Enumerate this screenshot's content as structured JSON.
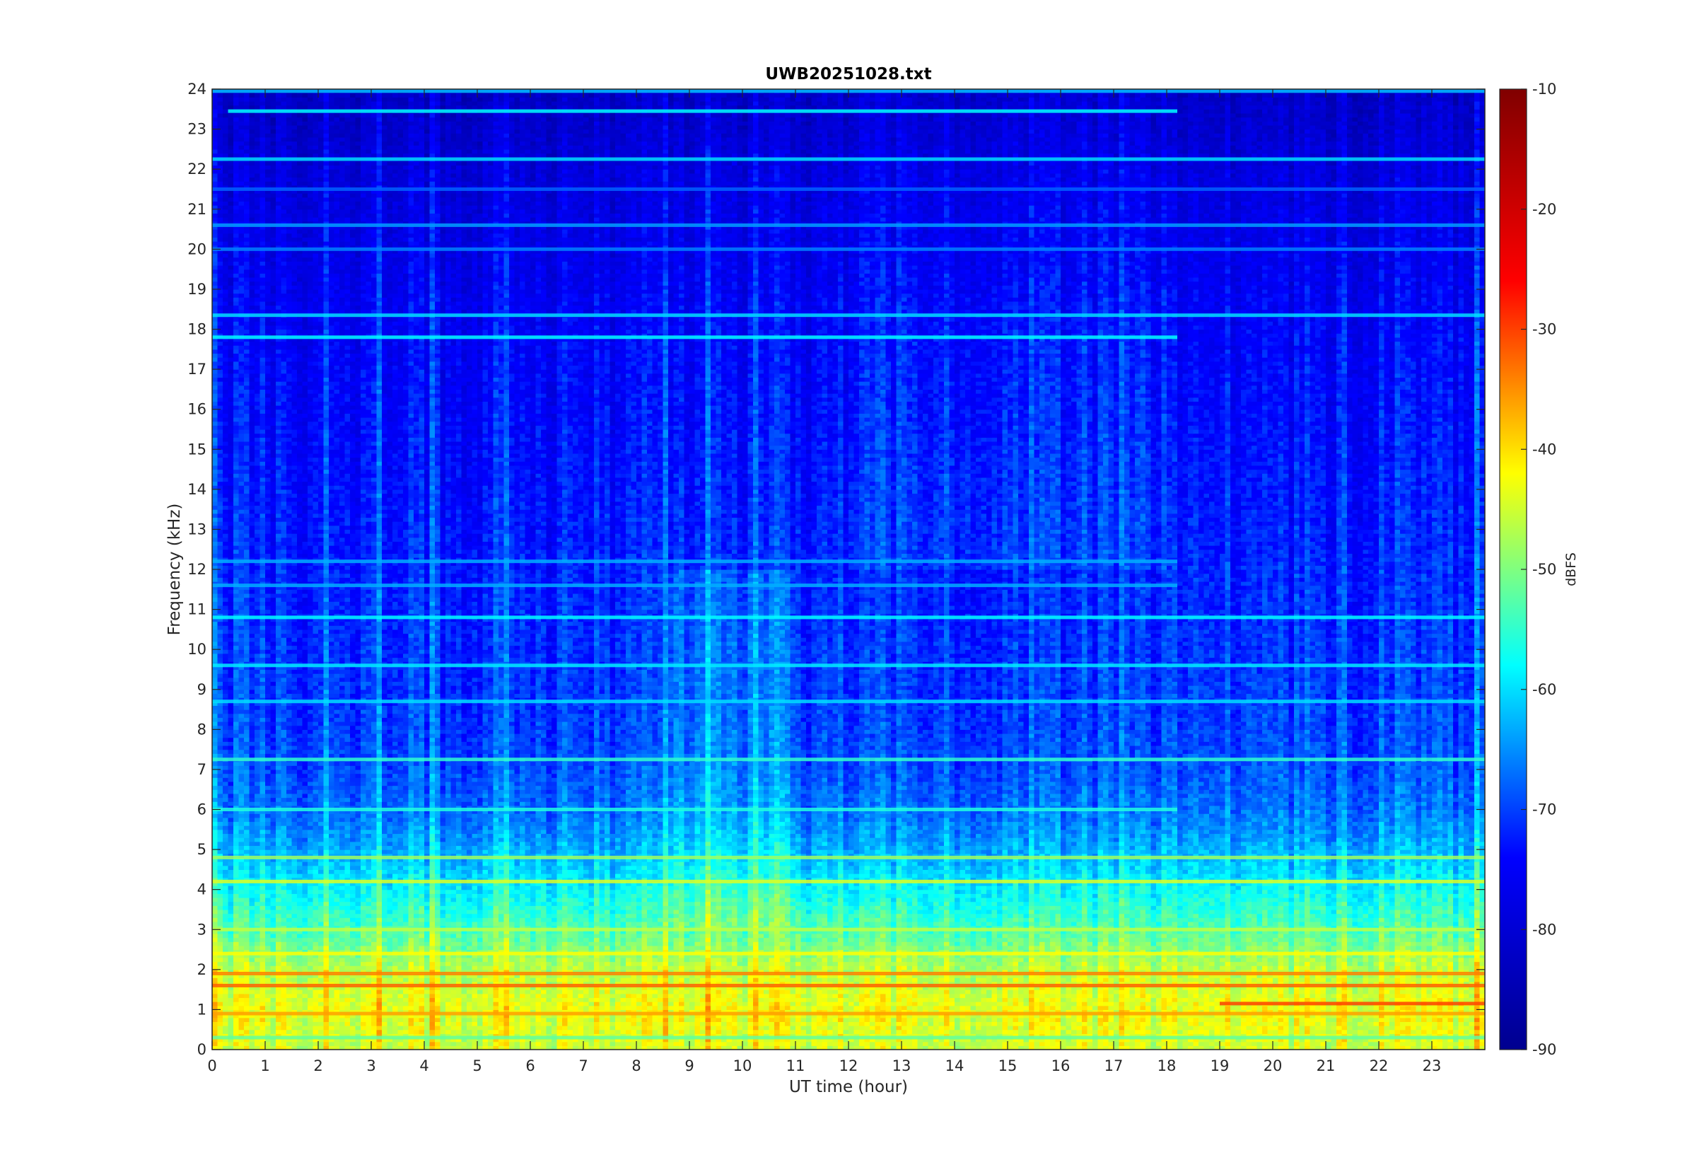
{
  "chart_data": {
    "type": "heatmap",
    "title": "UWB20251028.txt",
    "xlabel": "UT time (hour)",
    "ylabel": "Frequency (kHz)",
    "xlim": [
      0,
      24
    ],
    "ylim": [
      0,
      24
    ],
    "x_ticks": [
      "0",
      "1",
      "2",
      "3",
      "4",
      "5",
      "6",
      "7",
      "8",
      "9",
      "10",
      "11",
      "12",
      "13",
      "14",
      "15",
      "16",
      "17",
      "18",
      "19",
      "20",
      "21",
      "22",
      "23"
    ],
    "y_ticks": [
      "0",
      "1",
      "2",
      "3",
      "4",
      "5",
      "6",
      "7",
      "8",
      "9",
      "10",
      "11",
      "12",
      "13",
      "14",
      "15",
      "16",
      "17",
      "18",
      "19",
      "20",
      "21",
      "22",
      "23",
      "24"
    ],
    "colorbar": {
      "label": "dBFS",
      "colormap": "jet",
      "range": [
        -90,
        -10
      ],
      "ticks": [
        "-10",
        "-20",
        "-30",
        "-40",
        "-50",
        "-60",
        "-70",
        "-80",
        "-90"
      ]
    },
    "colormap_stops": [
      "#00008f",
      "#0000ff",
      "#00ffff",
      "#ffff00",
      "#ff0000",
      "#800000"
    ],
    "noise_floor_by_frequency": [
      {
        "freq_khz": 0,
        "dbfs": -45
      },
      {
        "freq_khz": 1,
        "dbfs": -43
      },
      {
        "freq_khz": 2,
        "dbfs": -46
      },
      {
        "freq_khz": 3,
        "dbfs": -53
      },
      {
        "freq_khz": 4,
        "dbfs": -58
      },
      {
        "freq_khz": 5,
        "dbfs": -63
      },
      {
        "freq_khz": 6,
        "dbfs": -67
      },
      {
        "freq_khz": 7,
        "dbfs": -69
      },
      {
        "freq_khz": 8,
        "dbfs": -70
      },
      {
        "freq_khz": 10,
        "dbfs": -71
      },
      {
        "freq_khz": 12,
        "dbfs": -72
      },
      {
        "freq_khz": 14,
        "dbfs": -73
      },
      {
        "freq_khz": 16,
        "dbfs": -74
      },
      {
        "freq_khz": 18,
        "dbfs": -75
      },
      {
        "freq_khz": 20,
        "dbfs": -77
      },
      {
        "freq_khz": 21,
        "dbfs": -78
      },
      {
        "freq_khz": 22,
        "dbfs": -79
      },
      {
        "freq_khz": 23,
        "dbfs": -81
      },
      {
        "freq_khz": 24,
        "dbfs": -82
      }
    ],
    "bright_quiet_period_hours": [
      12,
      18
    ],
    "tone_lines": [
      {
        "freq_khz": 0.3,
        "dbfs": -52,
        "t_start": 0,
        "t_end": 24
      },
      {
        "freq_khz": 0.9,
        "dbfs": -36,
        "t_start": 0,
        "t_end": 24
      },
      {
        "freq_khz": 1.15,
        "dbfs": -30,
        "t_start": 19,
        "t_end": 24
      },
      {
        "freq_khz": 1.6,
        "dbfs": -32,
        "t_start": 0,
        "t_end": 24
      },
      {
        "freq_khz": 1.9,
        "dbfs": -34,
        "t_start": 0,
        "t_end": 24
      },
      {
        "freq_khz": 2.4,
        "dbfs": -42,
        "t_start": 0,
        "t_end": 24
      },
      {
        "freq_khz": 3.0,
        "dbfs": -46,
        "t_start": 0,
        "t_end": 24
      },
      {
        "freq_khz": 4.2,
        "dbfs": -44,
        "t_start": 0,
        "t_end": 24
      },
      {
        "freq_khz": 4.8,
        "dbfs": -48,
        "t_start": 0,
        "t_end": 24
      },
      {
        "freq_khz": 6.0,
        "dbfs": -56,
        "t_start": 0,
        "t_end": 18.2
      },
      {
        "freq_khz": 7.25,
        "dbfs": -55,
        "t_start": 0,
        "t_end": 24
      },
      {
        "freq_khz": 8.7,
        "dbfs": -60,
        "t_start": 0,
        "t_end": 24
      },
      {
        "freq_khz": 9.6,
        "dbfs": -59,
        "t_start": 0,
        "t_end": 24
      },
      {
        "freq_khz": 10.8,
        "dbfs": -58,
        "t_start": 0,
        "t_end": 24
      },
      {
        "freq_khz": 11.6,
        "dbfs": -63,
        "t_start": 0,
        "t_end": 18.2
      },
      {
        "freq_khz": 12.2,
        "dbfs": -63,
        "t_start": 0,
        "t_end": 18.2
      },
      {
        "freq_khz": 17.8,
        "dbfs": -58,
        "t_start": 0,
        "t_end": 18.2
      },
      {
        "freq_khz": 18.35,
        "dbfs": -60,
        "t_start": 0,
        "t_end": 24
      },
      {
        "freq_khz": 20.0,
        "dbfs": -66,
        "t_start": 0,
        "t_end": 24
      },
      {
        "freq_khz": 20.6,
        "dbfs": -64,
        "t_start": 0,
        "t_end": 24
      },
      {
        "freq_khz": 21.5,
        "dbfs": -68,
        "t_start": 0,
        "t_end": 24
      },
      {
        "freq_khz": 22.25,
        "dbfs": -60,
        "t_start": 0,
        "t_end": 24
      },
      {
        "freq_khz": 23.45,
        "dbfs": -58,
        "t_start": 0.3,
        "t_end": 18.2
      },
      {
        "freq_khz": 23.95,
        "dbfs": -62,
        "t_start": 0,
        "t_end": 24
      }
    ],
    "grid": false,
    "legend": "colorbar-right"
  }
}
